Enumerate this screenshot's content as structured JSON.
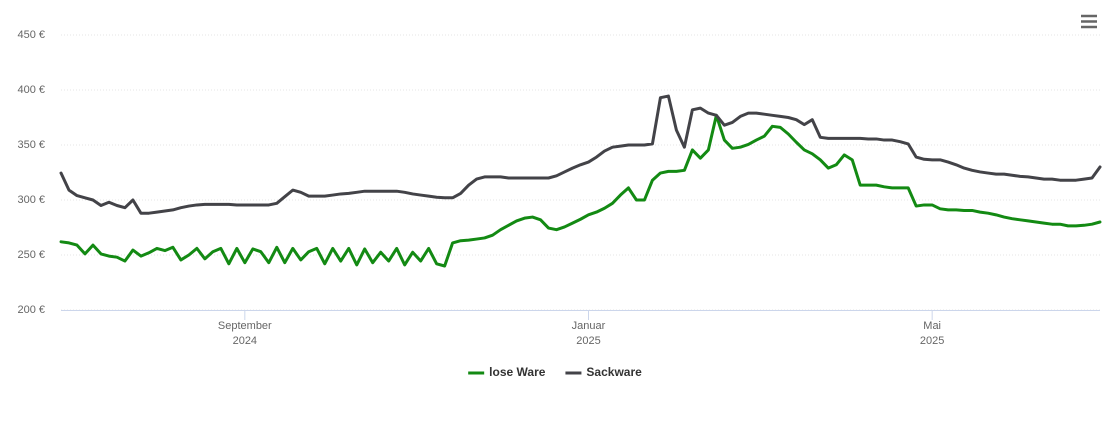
{
  "chart_data": {
    "type": "line",
    "categories": [
      null,
      null,
      null,
      null,
      null,
      null,
      null,
      null,
      null,
      null,
      null,
      null,
      null,
      null,
      null,
      null,
      null,
      null,
      null,
      null,
      null,
      null,
      null,
      "September 2024",
      null,
      null,
      null,
      null,
      null,
      null,
      null,
      null,
      null,
      null,
      null,
      null,
      null,
      null,
      null,
      null,
      null,
      null,
      null,
      null,
      null,
      null,
      null,
      null,
      null,
      null,
      null,
      null,
      null,
      null,
      null,
      null,
      null,
      null,
      null,
      null,
      null,
      null,
      null,
      null,
      null,
      null,
      "Januar 2025",
      null,
      null,
      null,
      null,
      null,
      null,
      null,
      null,
      null,
      null,
      null,
      null,
      null,
      null,
      null,
      null,
      null,
      null,
      null,
      null,
      null,
      null,
      null,
      null,
      null,
      null,
      null,
      null,
      null,
      null,
      null,
      null,
      null,
      null,
      null,
      null,
      null,
      null,
      null,
      null,
      null,
      null,
      "Mai 2025",
      null,
      null,
      null,
      null,
      null,
      null,
      null,
      null,
      null,
      null,
      null,
      null,
      null,
      null,
      null,
      null,
      null,
      null,
      null,
      null,
      null
    ],
    "series": [
      {
        "name": "lose Ware",
        "color": "#138a13",
        "values": [
          262,
          261,
          259,
          251,
          259,
          251,
          249,
          248,
          244.5,
          254.5,
          249,
          252,
          256,
          254,
          257,
          245.5,
          250,
          256,
          246.5,
          253,
          256,
          242,
          256,
          243,
          255.5,
          253,
          243,
          257,
          243,
          256,
          245.5,
          253,
          256,
          242,
          256,
          244.5,
          256,
          241,
          255.5,
          243,
          252.5,
          244.5,
          256,
          241,
          252.5,
          244.5,
          256,
          242,
          240,
          261,
          263,
          263.5,
          264.5,
          265.5,
          268,
          273,
          277,
          281,
          283.5,
          284.5,
          282,
          274.5,
          273,
          275.5,
          279,
          282.5,
          286.5,
          289,
          292.5,
          297,
          304.5,
          311,
          300,
          300,
          318,
          324.5,
          326,
          326,
          327,
          345.5,
          338,
          345.5,
          377,
          354.5,
          347,
          348,
          350.5,
          354.5,
          358,
          367,
          366,
          360,
          352.5,
          345.5,
          342,
          336.5,
          329,
          332,
          341,
          336.5,
          313.5,
          313.5,
          313.5,
          312,
          311,
          311,
          311,
          294.5,
          295.5,
          295.5,
          292,
          291,
          291,
          290.5,
          290.5,
          289,
          288,
          286.5,
          284.5,
          283,
          282,
          281,
          280,
          279,
          278,
          278,
          276.5,
          276.5,
          277,
          278,
          280
        ]
      },
      {
        "name": "Sackware",
        "color": "#434348",
        "values": [
          324.5,
          309,
          304,
          302,
          300,
          295,
          298,
          295,
          293,
          300,
          288,
          288,
          289,
          290,
          291,
          293,
          294.5,
          295.5,
          296,
          296,
          296,
          296,
          295.5,
          295.5,
          295.5,
          295.5,
          295.5,
          297,
          303,
          309,
          307,
          303.5,
          303.5,
          303.5,
          304.5,
          305.5,
          306,
          307,
          308,
          308,
          308,
          308,
          308,
          307,
          305.5,
          304.5,
          303.5,
          302.5,
          302,
          302,
          306,
          313.5,
          319,
          321,
          321,
          321,
          320,
          320,
          320,
          320,
          320,
          320,
          322,
          325.5,
          329,
          332,
          334.5,
          339,
          344.5,
          348,
          349,
          350,
          350,
          350,
          351,
          393,
          394.5,
          363.5,
          348,
          382,
          383.5,
          379,
          377,
          368,
          370.5,
          376,
          379,
          379,
          378,
          377,
          376,
          375,
          373,
          368.5,
          373,
          357,
          356,
          356,
          356,
          356,
          356,
          355.5,
          355.5,
          354.5,
          354.5,
          353,
          351,
          339,
          337,
          336.5,
          336.5,
          334.5,
          332,
          329,
          327,
          325.5,
          324.5,
          323.5,
          323.5,
          322.5,
          321.5,
          321,
          320,
          319,
          319,
          318,
          318,
          318,
          319,
          320,
          330
        ]
      }
    ],
    "ylim": [
      200,
      450
    ],
    "yticks": [
      {
        "value": 200,
        "label": "200 €"
      },
      {
        "value": 250,
        "label": "250 €"
      },
      {
        "value": 300,
        "label": "300 €"
      },
      {
        "value": 350,
        "label": "350 €"
      },
      {
        "value": 400,
        "label": "400 €"
      },
      {
        "value": 450,
        "label": "450 €"
      }
    ],
    "grid": true,
    "legend": "bottom"
  }
}
